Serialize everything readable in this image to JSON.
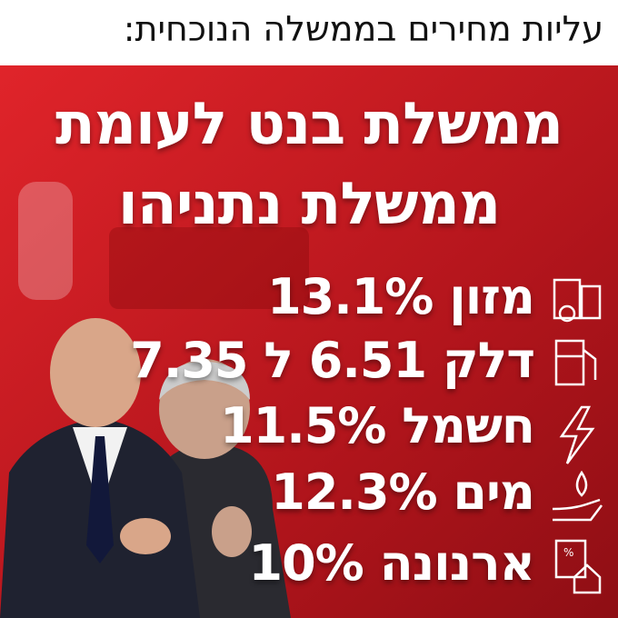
{
  "header": {
    "title": "עליות מחירים בממשלה הנוכחית:"
  },
  "headline": {
    "lines": [
      "ממשלת בנט לעומת",
      "ממשלת נתניהו"
    ]
  },
  "items": [
    "מזון 13.1%",
    "דלק 6.51 ל 7.35",
    "חשמל 11.5%",
    "מים 12.3%",
    "ארנונה 10%"
  ]
}
